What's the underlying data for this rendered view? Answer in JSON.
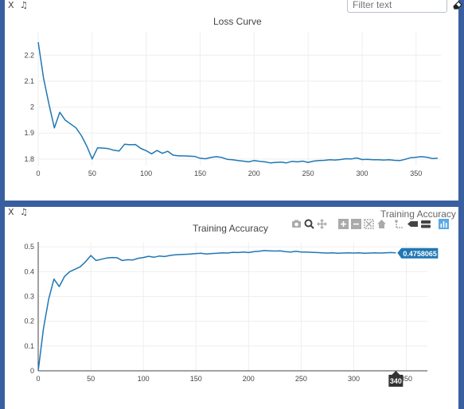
{
  "toolbar": {
    "close_label": "X",
    "music_label": "♫",
    "filter_placeholder": "Filter text"
  },
  "overlay": {
    "truncated_title": "Training Accuracy"
  },
  "hover": {
    "value_label": "0.4758065",
    "x_label": "340"
  },
  "colors": {
    "line": "#1f77b4",
    "frame": "#3a5fa0"
  },
  "chart_data": [
    {
      "type": "line",
      "title": "Loss Curve",
      "xlabel": "",
      "ylabel": "",
      "xlim": [
        0,
        373
      ],
      "ylim": [
        1.775,
        2.29
      ],
      "xticks": [
        0,
        50,
        100,
        150,
        200,
        250,
        300,
        350
      ],
      "yticks": [
        1.8,
        1.9,
        2,
        2.1,
        2.2
      ],
      "ytick_labels": [
        "1.8",
        "1.9",
        "2",
        "2.1",
        "2.2"
      ],
      "grid": true,
      "x": [
        0,
        5,
        10,
        15,
        20,
        25,
        30,
        35,
        40,
        45,
        50,
        55,
        60,
        65,
        70,
        75,
        80,
        85,
        90,
        95,
        100,
        105,
        110,
        115,
        120,
        125,
        130,
        135,
        140,
        145,
        150,
        155,
        160,
        165,
        170,
        175,
        180,
        185,
        190,
        195,
        200,
        205,
        210,
        215,
        220,
        225,
        230,
        235,
        240,
        245,
        250,
        255,
        260,
        265,
        270,
        275,
        280,
        285,
        290,
        295,
        300,
        305,
        310,
        315,
        320,
        325,
        330,
        335,
        340,
        345,
        350,
        355,
        360,
        365,
        370
      ],
      "y": [
        2.25,
        2.11,
        2.01,
        1.92,
        1.98,
        1.95,
        1.935,
        1.92,
        1.89,
        1.85,
        1.8,
        1.843,
        1.842,
        1.84,
        1.834,
        1.831,
        1.857,
        1.855,
        1.856,
        1.841,
        1.832,
        1.82,
        1.833,
        1.822,
        1.83,
        1.815,
        1.812,
        1.812,
        1.811,
        1.81,
        1.803,
        1.801,
        1.806,
        1.809,
        1.806,
        1.799,
        1.797,
        1.794,
        1.792,
        1.789,
        1.794,
        1.791,
        1.789,
        1.785,
        1.787,
        1.788,
        1.785,
        1.791,
        1.789,
        1.792,
        1.787,
        1.792,
        1.794,
        1.795,
        1.797,
        1.796,
        1.798,
        1.801,
        1.8,
        1.804,
        1.798,
        1.799,
        1.797,
        1.797,
        1.796,
        1.797,
        1.795,
        1.794,
        1.799,
        1.805,
        1.807,
        1.809,
        1.807,
        1.802,
        1.803
      ]
    },
    {
      "type": "line",
      "title": "Training Accuracy",
      "xlabel": "",
      "ylabel": "",
      "xlim": [
        0,
        370
      ],
      "ylim": [
        0,
        0.52
      ],
      "xticks": [
        0,
        50,
        100,
        150,
        200,
        250,
        300,
        350
      ],
      "yticks": [
        0,
        0.1,
        0.2,
        0.3,
        0.4,
        0.5
      ],
      "ytick_labels": [
        "0",
        "0.1",
        "0.2",
        "0.3",
        "0.4",
        "0.5"
      ],
      "grid": true,
      "x": [
        0,
        5,
        10,
        15,
        20,
        25,
        30,
        35,
        40,
        45,
        50,
        55,
        60,
        65,
        70,
        75,
        80,
        85,
        90,
        95,
        100,
        105,
        110,
        115,
        120,
        125,
        130,
        135,
        140,
        145,
        150,
        155,
        160,
        165,
        170,
        175,
        180,
        185,
        190,
        195,
        200,
        205,
        210,
        215,
        220,
        225,
        230,
        235,
        240,
        245,
        250,
        255,
        260,
        265,
        270,
        275,
        280,
        285,
        290,
        295,
        300,
        305,
        310,
        315,
        320,
        325,
        330,
        335,
        340
      ],
      "y": [
        0,
        0.17,
        0.29,
        0.37,
        0.34,
        0.38,
        0.4,
        0.41,
        0.42,
        0.44,
        0.465,
        0.445,
        0.45,
        0.455,
        0.457,
        0.456,
        0.445,
        0.448,
        0.447,
        0.454,
        0.457,
        0.462,
        0.458,
        0.463,
        0.461,
        0.465,
        0.468,
        0.469,
        0.47,
        0.471,
        0.473,
        0.474,
        0.471,
        0.473,
        0.474,
        0.476,
        0.475,
        0.478,
        0.477,
        0.479,
        0.477,
        0.481,
        0.482,
        0.485,
        0.484,
        0.483,
        0.484,
        0.481,
        0.479,
        0.482,
        0.479,
        0.479,
        0.478,
        0.477,
        0.476,
        0.475,
        0.476,
        0.474,
        0.475,
        0.476,
        0.475,
        0.476,
        0.474,
        0.475,
        0.476,
        0.475,
        0.476,
        0.477,
        0.4758065
      ]
    }
  ]
}
